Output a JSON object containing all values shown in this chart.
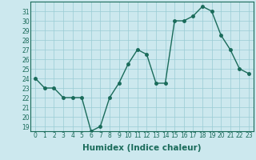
{
  "x": [
    0,
    1,
    2,
    3,
    4,
    5,
    6,
    7,
    8,
    9,
    10,
    11,
    12,
    13,
    14,
    15,
    16,
    17,
    18,
    19,
    20,
    21,
    22,
    23
  ],
  "y": [
    24,
    23,
    23,
    22,
    22,
    22,
    18.5,
    19,
    22,
    23.5,
    25.5,
    27,
    26.5,
    23.5,
    23.5,
    30,
    30,
    30.5,
    31.5,
    31,
    28.5,
    27,
    25,
    24.5
  ],
  "line_color": "#1a6b5a",
  "marker": "o",
  "markersize": 2.5,
  "linewidth": 1.0,
  "bg_color": "#cce8ee",
  "grid_color": "#99ccd4",
  "xlabel": "Humidex (Indice chaleur)",
  "xlim": [
    -0.5,
    23.5
  ],
  "ylim": [
    18.5,
    32
  ],
  "yticks": [
    19,
    20,
    21,
    22,
    23,
    24,
    25,
    26,
    27,
    28,
    29,
    30,
    31
  ],
  "xticks": [
    0,
    1,
    2,
    3,
    4,
    5,
    6,
    7,
    8,
    9,
    10,
    11,
    12,
    13,
    14,
    15,
    16,
    17,
    18,
    19,
    20,
    21,
    22,
    23
  ],
  "tick_fontsize": 5.5,
  "xlabel_fontsize": 7.5,
  "tick_color": "#1a6b5a",
  "label_color": "#1a6b5a"
}
